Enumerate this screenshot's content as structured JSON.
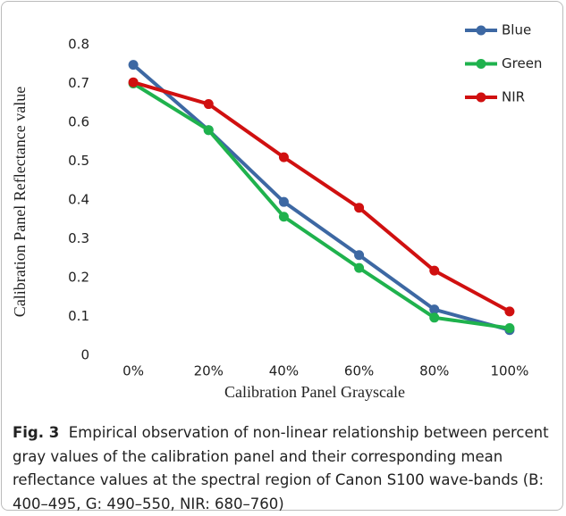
{
  "chart_data": {
    "type": "line",
    "y_label": "Calibration Panel Reflectance value",
    "x_label": "Calibration Panel Grayscale",
    "categories": [
      "0%",
      "20%",
      "40%",
      "60%",
      "80%",
      "100%"
    ],
    "series": [
      {
        "name": "Blue",
        "color": "#3d68a3",
        "values": [
          0.748,
          0.58,
          0.395,
          0.258,
          0.118,
          0.065
        ]
      },
      {
        "name": "Green",
        "color": "#1fb24d",
        "values": [
          0.7,
          0.58,
          0.357,
          0.225,
          0.097,
          0.07
        ]
      },
      {
        "name": "NIR",
        "color": "#d01010",
        "values": [
          0.703,
          0.647,
          0.51,
          0.38,
          0.218,
          0.113
        ]
      }
    ],
    "ylim": [
      0,
      0.8
    ],
    "yticks": [
      0,
      0.1,
      0.2,
      0.3,
      0.4,
      0.5,
      0.6,
      0.7,
      0.8
    ],
    "grid": false,
    "legend": "top-right"
  },
  "caption": {
    "label": "Fig. 3",
    "text": "Empirical observation of non-linear relationship between percent gray values of the calibration panel and their corresponding mean reflectance values at the spectral region of Canon S100 wave-bands (B: 400–495, G: 490–550, NIR: 680–760)"
  }
}
